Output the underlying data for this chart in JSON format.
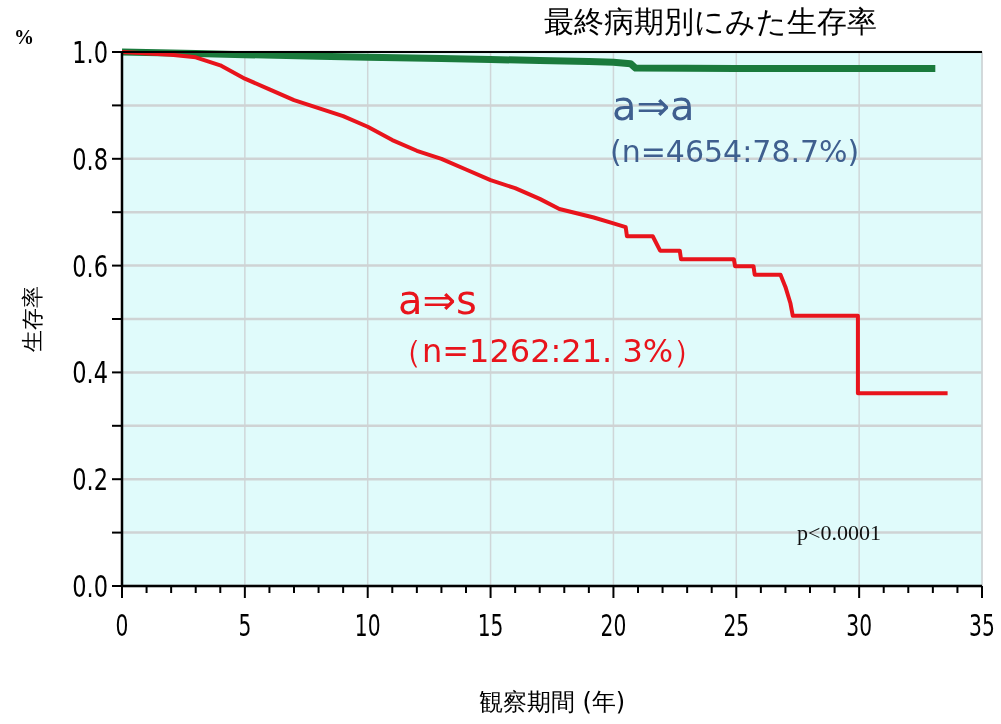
{
  "chart_data": {
    "type": "line",
    "title": "最終病期別にみた生存率",
    "xlabel": "観察期間 (年)",
    "ylabel": "生存率",
    "xlim": [
      0,
      35
    ],
    "ylim": [
      0,
      1
    ],
    "xticks": [
      0,
      {
        "value": 1,
        "label": null
      },
      {
        "value": 2,
        "label": null
      },
      {
        "value": 3,
        "label": null
      },
      {
        "value": 4,
        "label": null
      },
      5,
      {
        "value": 6,
        "label": null
      },
      {
        "value": 7,
        "label": null
      },
      {
        "value": 8,
        "label": null
      },
      {
        "value": 9,
        "label": null
      },
      10,
      {
        "value": 11,
        "label": null
      },
      {
        "value": 12,
        "label": null
      },
      {
        "value": 13,
        "label": null
      },
      {
        "value": 14,
        "label": null
      },
      15,
      {
        "value": 16,
        "label": null
      },
      {
        "value": 17,
        "label": null
      },
      {
        "value": 18,
        "label": null
      },
      {
        "value": 19,
        "label": null
      },
      20,
      {
        "value": 21,
        "label": null
      },
      {
        "value": 22,
        "label": null
      },
      {
        "value": 23,
        "label": null
      },
      {
        "value": 24,
        "label": null
      },
      25,
      {
        "value": 26,
        "label": null
      },
      {
        "value": 27,
        "label": null
      },
      {
        "value": 28,
        "label": null
      },
      {
        "value": 29,
        "label": null
      },
      30,
      {
        "value": 31,
        "label": null
      },
      {
        "value": 32,
        "label": null
      },
      {
        "value": 33,
        "label": null
      },
      {
        "value": 34,
        "label": null
      },
      35
    ],
    "yticks": [
      {
        "value": 0,
        "label": "0.0"
      },
      {
        "value": 0.1,
        "label": null
      },
      0.2,
      {
        "value": 0.3,
        "label": null
      },
      0.4,
      {
        "value": 0.5,
        "label": null
      },
      0.6,
      {
        "value": 0.7,
        "label": null
      },
      0.8,
      {
        "value": 0.9,
        "label": null
      },
      {
        "value": 1,
        "label": "1.0"
      }
    ],
    "grid": true,
    "line_style": "solid",
    "marker": "none",
    "series": [
      {
        "color": "#1a7a3c",
        "x": [
          0,
          3,
          5,
          8,
          10,
          13,
          15,
          17,
          19,
          20,
          20.7,
          20.9,
          25,
          30,
          33.1
        ],
        "values": [
          1,
          0.997,
          0.995,
          0.992,
          0.99,
          0.988,
          0.986,
          0.984,
          0.982,
          0.981,
          0.978,
          0.97,
          0.969,
          0.969,
          0.969
        ]
      },
      {
        "color": "#e8141c",
        "x": [
          0,
          2,
          3,
          4,
          5,
          6,
          7,
          8,
          9,
          10,
          11,
          12,
          13,
          14,
          15,
          16,
          17,
          17.8,
          19.2,
          20,
          20.5,
          20.55,
          21.6,
          21.9,
          22.7,
          22.75,
          24.9,
          24.95,
          25.7,
          25.75,
          26.8,
          27.0,
          27.2,
          27.3,
          29.95,
          29.95,
          33.6
        ],
        "values": [
          1,
          0.995,
          0.99,
          0.975,
          0.95,
          0.93,
          0.91,
          0.895,
          0.88,
          0.86,
          0.835,
          0.815,
          0.8,
          0.78,
          0.76,
          0.745,
          0.725,
          0.706,
          0.69,
          0.679,
          0.672,
          0.655,
          0.655,
          0.628,
          0.628,
          0.612,
          0.612,
          0.599,
          0.599,
          0.583,
          0.583,
          0.56,
          0.53,
          0.506,
          0.506,
          0.361,
          0.361
        ]
      }
    ],
    "annotations": [
      "%",
      "a⇒a",
      "(n=4654:78.7%)",
      "a⇒s",
      "（n=1262:21. 3%）",
      "p<0.0001"
    ]
  }
}
